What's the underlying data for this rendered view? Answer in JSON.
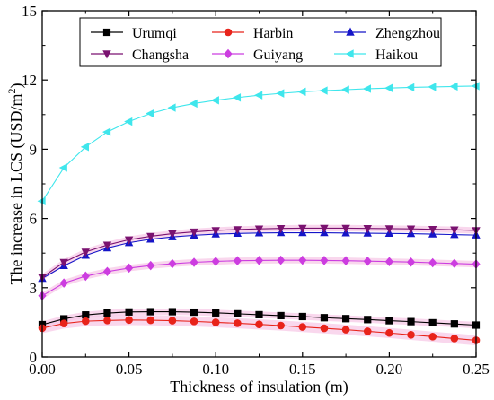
{
  "chart_data": {
    "type": "line",
    "title": "",
    "xlabel": "Thickness of insulation (m)",
    "ylabel_prefix": "The increase in LCS (USD/m",
    "ylabel_sup": "2",
    "ylabel_suffix": ")",
    "xlim": [
      0,
      0.25
    ],
    "ylim": [
      0,
      15
    ],
    "xticks": [
      0.0,
      0.05,
      0.1,
      0.15,
      0.2,
      0.25
    ],
    "xtick_labels": [
      "0.00",
      "0.05",
      "0.10",
      "0.15",
      "0.20",
      "0.25"
    ],
    "yticks": [
      0,
      3,
      6,
      9,
      12,
      15
    ],
    "ytick_labels": [
      "0",
      "3",
      "6",
      "9",
      "12",
      "15"
    ],
    "grid": false,
    "legend_position": "top",
    "x": [
      0,
      0.0125,
      0.025,
      0.0375,
      0.05,
      0.0625,
      0.075,
      0.0875,
      0.1,
      0.1125,
      0.125,
      0.1375,
      0.15,
      0.1625,
      0.175,
      0.1875,
      0.2,
      0.2125,
      0.225,
      0.2375,
      0.25
    ],
    "series": [
      {
        "name": "Urumqi",
        "marker": "square",
        "color": "#000000",
        "values": [
          1.4,
          1.65,
          1.82,
          1.9,
          1.95,
          1.96,
          1.96,
          1.94,
          1.91,
          1.87,
          1.83,
          1.79,
          1.75,
          1.7,
          1.66,
          1.62,
          1.57,
          1.53,
          1.48,
          1.43,
          1.38
        ]
      },
      {
        "name": "Harbin",
        "marker": "circle",
        "color": "#e8231a",
        "values": [
          1.25,
          1.45,
          1.55,
          1.58,
          1.6,
          1.59,
          1.57,
          1.54,
          1.5,
          1.46,
          1.41,
          1.36,
          1.3,
          1.24,
          1.18,
          1.11,
          1.04,
          0.96,
          0.88,
          0.8,
          0.72
        ]
      },
      {
        "name": "Zhengzhou",
        "marker": "triangle-up",
        "color": "#1515c8",
        "values": [
          3.4,
          3.95,
          4.4,
          4.72,
          4.95,
          5.1,
          5.2,
          5.27,
          5.32,
          5.35,
          5.37,
          5.38,
          5.38,
          5.38,
          5.37,
          5.36,
          5.35,
          5.34,
          5.32,
          5.3,
          5.28
        ]
      },
      {
        "name": "Changsha",
        "marker": "triangle-down",
        "color": "#7a1270",
        "values": [
          3.45,
          4.1,
          4.55,
          4.85,
          5.08,
          5.23,
          5.34,
          5.42,
          5.48,
          5.52,
          5.55,
          5.57,
          5.58,
          5.58,
          5.58,
          5.57,
          5.56,
          5.55,
          5.53,
          5.51,
          5.48
        ]
      },
      {
        "name": "Guiyang",
        "marker": "diamond",
        "color": "#cc3de0",
        "values": [
          2.65,
          3.2,
          3.5,
          3.7,
          3.85,
          3.96,
          4.04,
          4.1,
          4.14,
          4.17,
          4.18,
          4.19,
          4.19,
          4.18,
          4.17,
          4.15,
          4.13,
          4.11,
          4.08,
          4.05,
          4.02
        ]
      },
      {
        "name": "Haikou",
        "marker": "triangle-left",
        "color": "#3fe6ec",
        "values": [
          6.75,
          8.2,
          9.1,
          9.75,
          10.2,
          10.55,
          10.8,
          10.98,
          11.12,
          11.24,
          11.34,
          11.42,
          11.49,
          11.54,
          11.58,
          11.62,
          11.65,
          11.68,
          11.7,
          11.72,
          11.74
        ]
      }
    ]
  },
  "colors": {
    "axis": "#000000",
    "band_pink": "#f7c6e6"
  }
}
